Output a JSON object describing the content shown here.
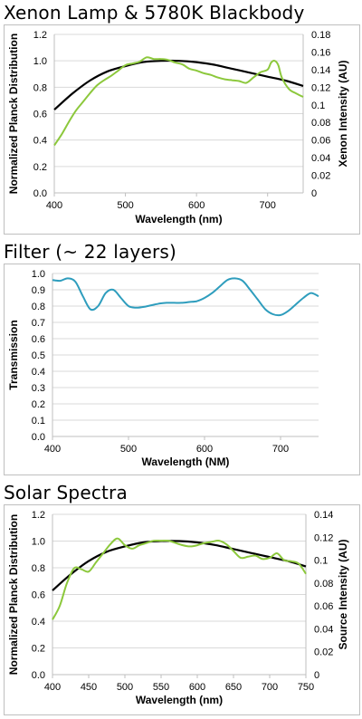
{
  "sections": [
    {
      "title": "Xenon Lamp & 5780K Blackbody"
    },
    {
      "title": "Filter (~ 22 layers)"
    },
    {
      "title": "Solar Spectra"
    }
  ],
  "chart_data": [
    {
      "type": "line",
      "xlabel": "Wavelength (nm)",
      "ylabel": "Normalized Planck Distribution",
      "y2label": "Xenon Intensity (AU)",
      "xlim": [
        400,
        750
      ],
      "ylim": [
        0,
        1.2
      ],
      "y2lim": [
        0,
        0.18
      ],
      "xticks": [
        400,
        500,
        600,
        700
      ],
      "yticks": [
        "0.0",
        "0.2",
        "0.4",
        "0.6",
        "0.8",
        "1.0",
        "1.2"
      ],
      "y2ticks": [
        "0",
        "0.02",
        "0.04",
        "0.06",
        "0.08",
        "0.1",
        "0.12",
        "0.14",
        "0.16",
        "0.18"
      ],
      "grid": true,
      "series": [
        {
          "color": "#000000",
          "axis": "left",
          "x": [
            400,
            425,
            450,
            475,
            500,
            525,
            550,
            575,
            600,
            625,
            650,
            675,
            700,
            725,
            750
          ],
          "y": [
            0.63,
            0.75,
            0.85,
            0.92,
            0.96,
            0.99,
            1.0,
            1.0,
            0.99,
            0.97,
            0.94,
            0.91,
            0.88,
            0.85,
            0.81
          ]
        },
        {
          "color": "#8cc83c",
          "axis": "right",
          "x": [
            400,
            410,
            420,
            430,
            440,
            450,
            460,
            470,
            480,
            490,
            500,
            510,
            520,
            530,
            540,
            550,
            560,
            570,
            580,
            590,
            600,
            610,
            620,
            630,
            640,
            650,
            660,
            670,
            680,
            690,
            700,
            705,
            710,
            715,
            720,
            730,
            740,
            750
          ],
          "y": [
            0.054,
            0.066,
            0.08,
            0.093,
            0.103,
            0.113,
            0.122,
            0.128,
            0.133,
            0.139,
            0.145,
            0.147,
            0.149,
            0.154,
            0.152,
            0.152,
            0.151,
            0.148,
            0.146,
            0.141,
            0.139,
            0.136,
            0.134,
            0.131,
            0.129,
            0.128,
            0.127,
            0.125,
            0.131,
            0.137,
            0.14,
            0.148,
            0.15,
            0.145,
            0.131,
            0.118,
            0.113,
            0.109
          ]
        }
      ]
    },
    {
      "type": "line",
      "xlabel": "Wavelength (NM)",
      "ylabel": "Transmission",
      "xlim": [
        400,
        750
      ],
      "ylim": [
        0,
        1.0
      ],
      "xticks": [
        400,
        500,
        600,
        700
      ],
      "yticks": [
        "0.0",
        "0.1",
        "0.2",
        "0.3",
        "0.4",
        "0.5",
        "0.6",
        "0.7",
        "0.8",
        "0.9",
        "1.0"
      ],
      "grid": true,
      "series": [
        {
          "color": "#2e9dbd",
          "axis": "left",
          "x": [
            400,
            410,
            420,
            430,
            440,
            450,
            460,
            470,
            480,
            490,
            500,
            510,
            520,
            530,
            540,
            550,
            560,
            570,
            580,
            590,
            600,
            610,
            620,
            630,
            640,
            650,
            660,
            670,
            680,
            690,
            700,
            710,
            720,
            730,
            740,
            750
          ],
          "y": [
            0.96,
            0.955,
            0.97,
            0.95,
            0.86,
            0.78,
            0.8,
            0.88,
            0.9,
            0.85,
            0.8,
            0.79,
            0.795,
            0.805,
            0.815,
            0.82,
            0.82,
            0.82,
            0.825,
            0.83,
            0.85,
            0.88,
            0.92,
            0.96,
            0.97,
            0.955,
            0.9,
            0.84,
            0.78,
            0.75,
            0.745,
            0.77,
            0.81,
            0.85,
            0.88,
            0.86
          ]
        }
      ]
    },
    {
      "type": "line",
      "xlabel": "Wavelength (nm)",
      "ylabel": "Normalized Planck Distribution",
      "y2label": "Source Intensity (AU)",
      "xlim": [
        400,
        750
      ],
      "ylim": [
        0,
        1.2
      ],
      "y2lim": [
        0,
        0.14
      ],
      "xticks": [
        400,
        450,
        500,
        550,
        600,
        650,
        700,
        750
      ],
      "yticks": [
        "0.0",
        "0.2",
        "0.4",
        "0.6",
        "0.8",
        "1.0",
        "1.2"
      ],
      "y2ticks": [
        "0",
        "0.02",
        "0.04",
        "0.06",
        "0.08",
        "0.1",
        "0.12",
        "0.14"
      ],
      "grid": true,
      "series": [
        {
          "color": "#000000",
          "axis": "left",
          "x": [
            400,
            425,
            450,
            475,
            500,
            525,
            550,
            575,
            600,
            625,
            650,
            675,
            700,
            725,
            750
          ],
          "y": [
            0.63,
            0.75,
            0.85,
            0.92,
            0.96,
            0.99,
            1.0,
            1.0,
            0.99,
            0.97,
            0.94,
            0.91,
            0.88,
            0.85,
            0.81
          ]
        },
        {
          "color": "#8cc83c",
          "axis": "right",
          "x": [
            400,
            410,
            420,
            430,
            440,
            450,
            460,
            470,
            480,
            490,
            500,
            510,
            520,
            530,
            540,
            550,
            560,
            570,
            580,
            590,
            600,
            610,
            620,
            630,
            640,
            650,
            660,
            670,
            680,
            690,
            700,
            710,
            720,
            730,
            740,
            750
          ],
          "y": [
            0.048,
            0.06,
            0.08,
            0.093,
            0.092,
            0.09,
            0.098,
            0.106,
            0.114,
            0.119,
            0.113,
            0.11,
            0.113,
            0.115,
            0.117,
            0.117,
            0.117,
            0.115,
            0.113,
            0.112,
            0.113,
            0.115,
            0.116,
            0.117,
            0.114,
            0.108,
            0.102,
            0.103,
            0.104,
            0.101,
            0.102,
            0.106,
            0.1,
            0.099,
            0.097,
            0.088
          ]
        }
      ]
    }
  ]
}
